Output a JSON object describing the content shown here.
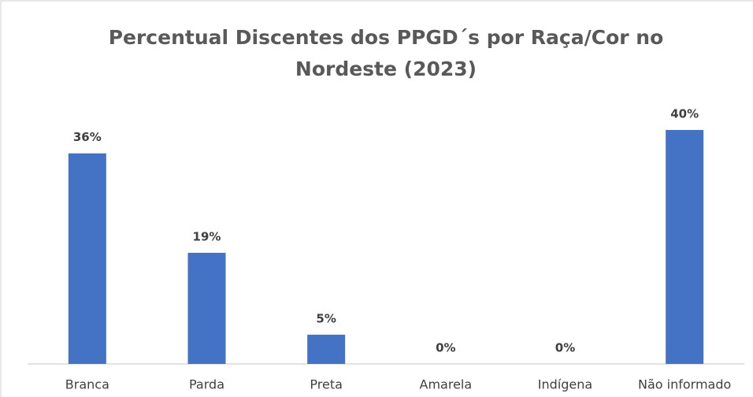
{
  "chart_data": {
    "type": "bar",
    "title": "Percentual Discentes dos PPGD´s por Raça/Cor no Nordeste (2023)",
    "categories": [
      "Branca",
      "Parda",
      "Preta",
      "Amarela",
      "Indígena",
      "Não informado"
    ],
    "values": [
      36,
      19,
      5,
      0,
      0,
      40
    ],
    "value_labels": [
      "36%",
      "19%",
      "5%",
      "0%",
      "0%",
      "40%"
    ],
    "color": "#4472c4"
  }
}
